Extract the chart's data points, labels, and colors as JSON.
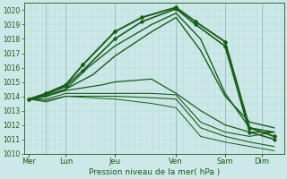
{
  "xlabel": "Pression niveau de la mer( hPa )",
  "background_color": "#cce8e8",
  "grid_minor_color": "#b8d8d8",
  "grid_major_color": "#99bbbb",
  "line_color": "#1a5c1a",
  "ylim": [
    1010,
    1020.5
  ],
  "yticks": [
    1010,
    1011,
    1012,
    1013,
    1014,
    1015,
    1016,
    1017,
    1018,
    1019,
    1020
  ],
  "day_labels": [
    "Mer",
    "Lun",
    "Jeu",
    "Ven",
    "Sam",
    "Dim"
  ],
  "day_x": [
    0,
    0.75,
    1.75,
    3.0,
    4.0,
    4.75
  ],
  "vline_x": [
    0.35,
    0.75,
    1.75,
    3.0,
    4.0,
    4.75
  ],
  "xlim": [
    -0.1,
    5.2
  ],
  "lines": [
    {
      "x": [
        0.0,
        0.35,
        0.75,
        1.1,
        1.75,
        2.3,
        3.0,
        3.4,
        4.0,
        4.5,
        5.0
      ],
      "y": [
        1013.8,
        1014.2,
        1014.8,
        1016.2,
        1018.5,
        1019.5,
        1020.2,
        1019.2,
        1017.8,
        1011.8,
        1011.2
      ],
      "lw": 1.4,
      "marker": "D",
      "ms": 2.0
    },
    {
      "x": [
        0.0,
        0.35,
        0.75,
        1.1,
        1.75,
        2.3,
        3.0,
        3.4,
        4.0,
        4.5,
        5.0
      ],
      "y": [
        1013.8,
        1014.1,
        1014.7,
        1015.8,
        1018.0,
        1019.2,
        1020.1,
        1019.0,
        1017.5,
        1011.5,
        1011.0
      ],
      "lw": 1.2,
      "marker": "D",
      "ms": 1.8
    },
    {
      "x": [
        0.0,
        0.35,
        0.75,
        1.2,
        1.75,
        2.5,
        3.0,
        3.5,
        4.0,
        4.5,
        5.0
      ],
      "y": [
        1013.8,
        1014.0,
        1014.5,
        1016.0,
        1017.5,
        1019.0,
        1019.8,
        1018.0,
        1014.2,
        1011.8,
        1011.5
      ],
      "lw": 1.0,
      "marker": null,
      "ms": 0
    },
    {
      "x": [
        0.0,
        0.35,
        0.75,
        1.3,
        1.75,
        2.5,
        3.0,
        3.5,
        4.0,
        4.5,
        5.0
      ],
      "y": [
        1013.8,
        1014.0,
        1014.5,
        1015.5,
        1016.8,
        1018.5,
        1019.5,
        1017.2,
        1014.0,
        1012.2,
        1011.8
      ],
      "lw": 1.0,
      "marker": null,
      "ms": 0
    },
    {
      "x": [
        0.0,
        0.35,
        0.75,
        1.5,
        1.75,
        2.5,
        3.0,
        3.5,
        4.0,
        4.5,
        5.0
      ],
      "y": [
        1013.8,
        1014.0,
        1014.4,
        1014.8,
        1015.0,
        1015.2,
        1014.2,
        1013.0,
        1012.0,
        1011.5,
        1011.5
      ],
      "lw": 0.9,
      "marker": null,
      "ms": 0
    },
    {
      "x": [
        0.0,
        0.35,
        0.75,
        1.75,
        2.5,
        3.0,
        3.5,
        4.0,
        4.5,
        5.0
      ],
      "y": [
        1013.8,
        1013.8,
        1014.2,
        1014.2,
        1014.2,
        1014.1,
        1012.2,
        1011.5,
        1011.2,
        1011.5
      ],
      "lw": 0.8,
      "marker": null,
      "ms": 0
    },
    {
      "x": [
        0.0,
        0.35,
        0.75,
        1.75,
        2.5,
        3.0,
        3.5,
        4.0,
        4.5,
        5.0
      ],
      "y": [
        1013.8,
        1013.7,
        1014.0,
        1014.0,
        1013.9,
        1013.8,
        1011.8,
        1011.2,
        1010.8,
        1010.5
      ],
      "lw": 0.8,
      "marker": null,
      "ms": 0
    },
    {
      "x": [
        0.0,
        0.35,
        0.75,
        1.75,
        2.5,
        3.0,
        3.5,
        4.0,
        4.5,
        5.0
      ],
      "y": [
        1013.8,
        1013.6,
        1014.0,
        1013.8,
        1013.5,
        1013.2,
        1011.2,
        1010.8,
        1010.5,
        1010.2
      ],
      "lw": 0.7,
      "marker": null,
      "ms": 0
    }
  ]
}
